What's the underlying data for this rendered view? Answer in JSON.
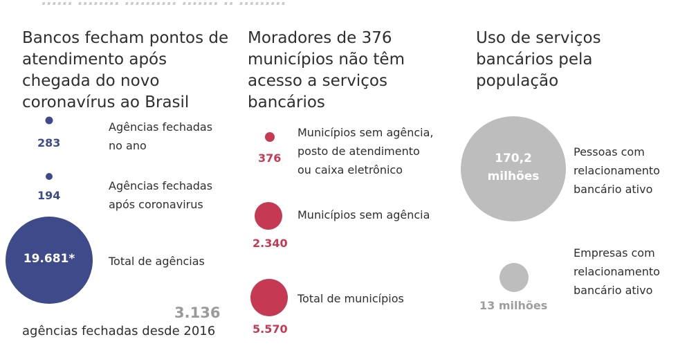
{
  "header_fragment": "...... ........ .......... ....... .. .........",
  "chart_data": [
    {
      "type": "bubble",
      "title": "Bancos fecham pontos de atendimento após chegada do novo coronavírus ao Brasil",
      "color": "#3e4a8a",
      "items": [
        {
          "value_label": "283",
          "value": 283,
          "label": [
            "Agências fechadas",
            "no ano"
          ]
        },
        {
          "value_label": "194",
          "value": 194,
          "label": [
            "Agências fechadas",
            "após coronavirus"
          ]
        },
        {
          "value_label": "19.681*",
          "value": 19681,
          "label": [
            "Total de agências"
          ]
        }
      ],
      "footer": {
        "number": "3.136",
        "text": "agências fechadas desde 2016"
      }
    },
    {
      "type": "bubble",
      "title": "Moradores de 376 municípios não têm acesso a serviços bancários",
      "color": "#c53a52",
      "items": [
        {
          "value_label": "376",
          "value": 376,
          "label": [
            "Municípios sem agência,",
            "posto de atendimento",
            "ou caixa eletrônico"
          ]
        },
        {
          "value_label": "2.340",
          "value": 2340,
          "label": [
            "Municípios sem agência"
          ]
        },
        {
          "value_label": "5.570",
          "value": 5570,
          "label": [
            "Total de municípios"
          ]
        }
      ]
    },
    {
      "type": "bubble",
      "title": "Uso de serviços bancários pela população",
      "color": "#bdbdbd",
      "items": [
        {
          "value_label": "170,2 milhões",
          "value": 170.2,
          "unit": "milhões",
          "label": [
            "Pessoas com",
            "relacionamento",
            "bancário ativo"
          ]
        },
        {
          "value_label": "13 milhões",
          "value": 13,
          "unit": "milhões",
          "label": [
            "Empresas com",
            "relacionamento",
            "bancário ativo"
          ]
        }
      ]
    }
  ]
}
